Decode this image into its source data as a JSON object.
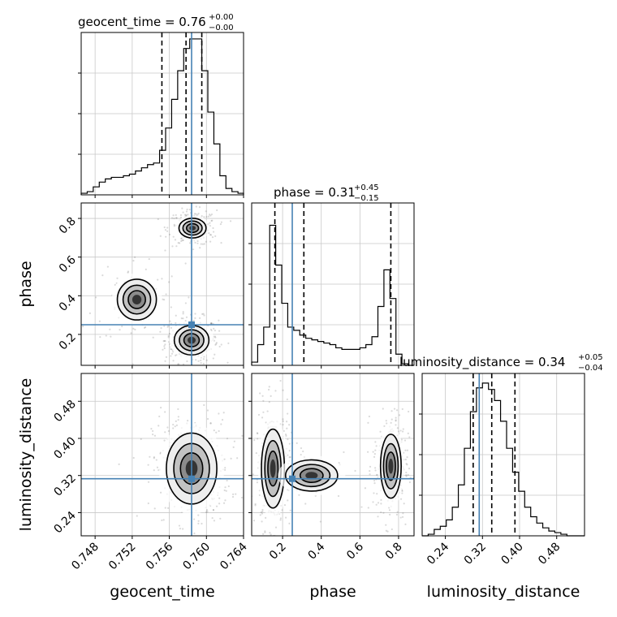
{
  "chart_data": {
    "type": "corner",
    "parameters": [
      "geocent_time",
      "phase",
      "luminosity_distance"
    ],
    "axis_labels": {
      "x": [
        "geocent_time",
        "phase",
        "luminosity_distance"
      ],
      "y": [
        "",
        "phase",
        "luminosity_distance"
      ]
    },
    "ranges": {
      "geocent_time": [
        0.7465,
        0.764
      ],
      "phase": [
        0.04,
        0.88
      ],
      "luminosity_distance": [
        0.19,
        0.54
      ]
    },
    "ticks": {
      "geocent_time": [
        "0.748",
        "0.752",
        "0.756",
        "0.760",
        "0.764"
      ],
      "phase": [
        "0.2",
        "0.4",
        "0.6",
        "0.8"
      ],
      "luminosity_distance": [
        "0.24",
        "0.32",
        "0.40",
        "0.48"
      ]
    },
    "truths": {
      "geocent_time": 0.7584,
      "phase": 0.25,
      "luminosity_distance": 0.313
    },
    "truth_color": "#4682b4",
    "titles": [
      {
        "param": "geocent_time",
        "label": "geocent_time = 0.76",
        "plus": "+0.00",
        "minus": "−0.00",
        "quantiles": [
          0.7552,
          0.7578,
          0.7595
        ]
      },
      {
        "param": "phase",
        "label": "phase = 0.31",
        "plus": "+0.45",
        "minus": "−0.15",
        "quantiles": [
          0.16,
          0.31,
          0.76
        ]
      },
      {
        "param": "luminosity_distance",
        "label": "luminosity_distance = 0.34",
        "plus": "+0.05",
        "minus": "−0.04",
        "quantiles": [
          0.3,
          0.34,
          0.39
        ]
      }
    ],
    "histograms": {
      "geocent_time": {
        "edges": [
          0.7465,
          0.74715,
          0.7478,
          0.74845,
          0.7491,
          0.74975,
          0.7504,
          0.75105,
          0.7517,
          0.75235,
          0.753,
          0.75365,
          0.7543,
          0.75495,
          0.7556,
          0.75625,
          0.7569,
          0.75755,
          0.7582,
          0.75885,
          0.7595,
          0.76015,
          0.7608,
          0.76145,
          0.7621,
          0.76275,
          0.7634,
          0.764
        ],
        "counts": [
          0.01,
          0.02,
          0.05,
          0.08,
          0.1,
          0.11,
          0.11,
          0.12,
          0.13,
          0.15,
          0.17,
          0.19,
          0.2,
          0.28,
          0.42,
          0.6,
          0.78,
          0.92,
          0.98,
          0.98,
          0.78,
          0.52,
          0.32,
          0.12,
          0.04,
          0.02,
          0.01
        ]
      },
      "phase": {
        "edges": [
          0.04,
          0.0711,
          0.1022,
          0.1333,
          0.1644,
          0.1955,
          0.2266,
          0.2577,
          0.2888,
          0.3199,
          0.351,
          0.3821,
          0.4132,
          0.4443,
          0.4754,
          0.5065,
          0.5376,
          0.5687,
          0.5998,
          0.6309,
          0.662,
          0.6931,
          0.7242,
          0.7553,
          0.7864,
          0.8175,
          0.8486,
          0.88
        ],
        "counts": [
          0.02,
          0.13,
          0.24,
          0.88,
          0.63,
          0.39,
          0.24,
          0.22,
          0.19,
          0.17,
          0.16,
          0.15,
          0.14,
          0.13,
          0.11,
          0.1,
          0.1,
          0.1,
          0.11,
          0.13,
          0.18,
          0.37,
          0.6,
          0.42,
          0.07,
          0.01,
          0.0
        ]
      },
      "luminosity_distance": {
        "edges": [
          0.19,
          0.203,
          0.216,
          0.229,
          0.242,
          0.255,
          0.268,
          0.281,
          0.294,
          0.307,
          0.32,
          0.333,
          0.346,
          0.359,
          0.372,
          0.385,
          0.398,
          0.411,
          0.424,
          0.437,
          0.45,
          0.463,
          0.476,
          0.489,
          0.502,
          0.515,
          0.528,
          0.54
        ],
        "counts": [
          0.0,
          0.01,
          0.04,
          0.06,
          0.1,
          0.18,
          0.32,
          0.55,
          0.78,
          0.93,
          0.96,
          0.92,
          0.85,
          0.72,
          0.55,
          0.4,
          0.28,
          0.18,
          0.12,
          0.08,
          0.05,
          0.03,
          0.02,
          0.01,
          0.0,
          0.0,
          0.0
        ]
      }
    },
    "density_2d": [
      {
        "x": "geocent_time",
        "y": "phase",
        "modes": [
          {
            "cx": 0.7584,
            "cy": 0.17,
            "sx": 0.0011,
            "sy": 0.045,
            "w": 1.0
          },
          {
            "cx": 0.7585,
            "cy": 0.75,
            "sx": 0.001,
            "sy": 0.035,
            "w": 0.65
          },
          {
            "cx": 0.7525,
            "cy": 0.38,
            "sx": 0.0018,
            "sy": 0.09,
            "w": 0.22
          }
        ]
      },
      {
        "x": "geocent_time",
        "y": "luminosity_distance",
        "modes": [
          {
            "cx": 0.7584,
            "cy": 0.335,
            "sx": 0.0016,
            "sy": 0.045,
            "w": 1.0
          }
        ]
      },
      {
        "x": "phase",
        "y": "luminosity_distance",
        "modes": [
          {
            "cx": 0.15,
            "cy": 0.335,
            "sx": 0.035,
            "sy": 0.05,
            "w": 1.0
          },
          {
            "cx": 0.76,
            "cy": 0.34,
            "sx": 0.035,
            "sy": 0.045,
            "w": 0.75
          },
          {
            "cx": 0.35,
            "cy": 0.32,
            "sx": 0.12,
            "sy": 0.03,
            "w": 0.15
          }
        ]
      }
    ],
    "grid": true,
    "colors": {
      "hist": "#000000",
      "contour": "#000000",
      "truth": "#4682b4"
    }
  }
}
